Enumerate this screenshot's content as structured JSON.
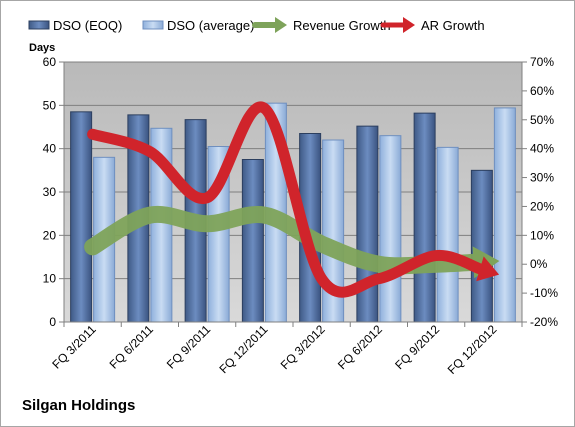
{
  "company_name": "Silgan Holdings",
  "chart_data": {
    "type": "bar",
    "categories": [
      "FQ 3/2011",
      "FQ 6/2011",
      "FQ 9/2011",
      "FQ 12/2011",
      "FQ 3/2012",
      "FQ 6/2012",
      "FQ 9/2012",
      "FQ 12/2012"
    ],
    "series": [
      {
        "name": "DSO (EOQ)",
        "axis": "left",
        "kind": "bar",
        "color": "#4f6d9c",
        "values": [
          48.5,
          47.8,
          46.7,
          37.5,
          43.5,
          45.2,
          48.2,
          35.0
        ]
      },
      {
        "name": "DSO (average)",
        "axis": "left",
        "kind": "bar",
        "color": "#a9c4e8",
        "values": [
          38.0,
          44.7,
          40.5,
          50.5,
          42.0,
          43.0,
          40.3,
          49.4
        ]
      },
      {
        "name": "Revenue Growth",
        "axis": "right",
        "kind": "arrow-line",
        "color": "#7ea35a",
        "values": [
          6,
          17,
          14,
          17,
          7,
          0,
          0,
          1
        ]
      },
      {
        "name": "AR Growth",
        "axis": "right",
        "kind": "arrow-line",
        "color": "#d0242b",
        "values": [
          45,
          39,
          23,
          54,
          -5,
          -5,
          3,
          -3
        ]
      }
    ],
    "ylabel": "Days",
    "ylim": [
      0,
      60
    ],
    "yticks": [
      "0",
      "10",
      "20",
      "30",
      "40",
      "50",
      "60"
    ],
    "y2lim": [
      -20,
      70
    ],
    "y2ticks": [
      "-20%",
      "-10%",
      "0%",
      "10%",
      "20%",
      "30%",
      "40%",
      "50%",
      "60%",
      "70%"
    ],
    "grid": true,
    "legend": "top",
    "plot_background": "#c0c0c0"
  }
}
